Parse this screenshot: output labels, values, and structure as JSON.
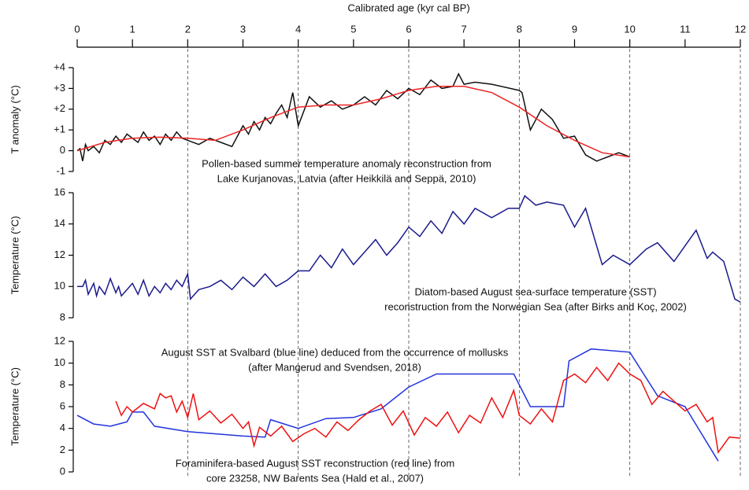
{
  "chart_data": [
    {
      "type": "line",
      "xlabel": "Calibrated age (kyr cal BP)",
      "xlim": [
        0,
        12
      ],
      "xticks": [
        0,
        1,
        2,
        3,
        4,
        5,
        6,
        7,
        8,
        9,
        10,
        11,
        12
      ],
      "vlines": [
        2,
        4,
        6,
        8,
        10,
        12
      ],
      "ylabel": "T anomaly (°C)",
      "ylim": [
        -1,
        4
      ],
      "yticks": [
        {
          "value": 4,
          "label": "+4"
        },
        {
          "value": 3,
          "label": "+3"
        },
        {
          "value": 2,
          "label": "+2"
        },
        {
          "value": 1,
          "label": "+1"
        },
        0,
        -1
      ],
      "annotations": [
        [
          "Pollen-based summer temperature anomaly reconstruction from",
          "Lake Kurjanovas, Latvia (after Heikkilä and Seppä, 2010)"
        ]
      ],
      "series": [
        {
          "color": "#111111",
          "x": [
            0,
            0.05,
            0.1,
            0.15,
            0.2,
            0.3,
            0.4,
            0.5,
            0.6,
            0.7,
            0.8,
            0.9,
            1.0,
            1.1,
            1.2,
            1.3,
            1.4,
            1.5,
            1.6,
            1.7,
            1.8,
            1.9,
            2.0,
            2.2,
            2.4,
            2.6,
            2.8,
            3.0,
            3.1,
            3.2,
            3.3,
            3.4,
            3.5,
            3.6,
            3.7,
            3.8,
            3.9,
            4.0,
            4.2,
            4.4,
            4.6,
            4.8,
            5.0,
            5.2,
            5.4,
            5.6,
            5.8,
            6.0,
            6.2,
            6.4,
            6.6,
            6.8,
            6.9,
            7.0,
            7.2,
            7.5,
            8.0,
            8.05,
            8.2,
            8.4,
            8.6,
            8.8,
            9.0,
            9.2,
            9.4,
            9.6,
            9.8,
            10.0
          ],
          "values": [
            0,
            0.1,
            -0.5,
            0.3,
            0,
            0.2,
            -0.1,
            0.5,
            0.3,
            0.7,
            0.4,
            0.8,
            0.6,
            0.4,
            0.9,
            0.5,
            0.7,
            0.3,
            0.8,
            0.5,
            0.9,
            0.6,
            0.5,
            0.3,
            0.6,
            0.4,
            0.2,
            1.2,
            0.8,
            1.4,
            1.0,
            1.6,
            1.3,
            1.8,
            2.2,
            1.6,
            2.8,
            1.2,
            2.6,
            2.1,
            2.4,
            2.0,
            2.2,
            2.6,
            2.2,
            2.9,
            2.5,
            3.0,
            2.7,
            3.4,
            3.0,
            3.1,
            3.7,
            3.2,
            3.3,
            3.2,
            2.9,
            2.8,
            1.0,
            2.0,
            1.5,
            0.6,
            0.7,
            -0.2,
            -0.5,
            -0.3,
            -0.1,
            -0.3
          ]
        },
        {
          "color": "#ee2222",
          "x": [
            0,
            0.5,
            1,
            1.5,
            2,
            2.5,
            3,
            3.5,
            4,
            4.5,
            5,
            5.5,
            6,
            6.5,
            7,
            7.5,
            8,
            8.5,
            9,
            9.5,
            10
          ],
          "values": [
            0,
            0.4,
            0.6,
            0.65,
            0.6,
            0.5,
            1.0,
            1.6,
            2.1,
            2.2,
            2.2,
            2.5,
            2.9,
            3.1,
            3.1,
            2.8,
            2.1,
            1.2,
            0.5,
            -0.1,
            -0.3
          ]
        }
      ]
    },
    {
      "type": "line",
      "xlim": [
        0,
        12
      ],
      "ylabel": "Temperature (°C)",
      "ylim": [
        8,
        16
      ],
      "yticks": [
        8,
        10,
        12,
        14,
        16
      ],
      "annotations": [
        [
          "Diatom-based August sea-surface temperature (SST)",
          "reconstruction from the Norwegian Sea (after Birks and Koç, 2002)"
        ]
      ],
      "series": [
        {
          "color": "#1a1a8c",
          "x": [
            0,
            0.1,
            0.15,
            0.2,
            0.3,
            0.35,
            0.4,
            0.5,
            0.6,
            0.7,
            0.75,
            0.8,
            0.9,
            1.0,
            1.1,
            1.2,
            1.3,
            1.4,
            1.5,
            1.6,
            1.7,
            1.8,
            1.9,
            2.0,
            2.05,
            2.2,
            2.4,
            2.6,
            2.8,
            3.0,
            3.2,
            3.4,
            3.6,
            3.8,
            4.0,
            4.2,
            4.4,
            4.6,
            4.8,
            5.0,
            5.2,
            5.4,
            5.6,
            5.8,
            6.0,
            6.2,
            6.4,
            6.6,
            6.8,
            7.0,
            7.2,
            7.5,
            7.8,
            8.0,
            8.1,
            8.3,
            8.5,
            8.8,
            9.0,
            9.2,
            9.5,
            9.7,
            10.0,
            10.3,
            10.5,
            10.8,
            11.0,
            11.2,
            11.4,
            11.5,
            11.7,
            11.9,
            12.0
          ],
          "values": [
            10,
            10,
            10.4,
            9.5,
            10.2,
            9.4,
            10,
            9.5,
            10.5,
            9.6,
            10,
            9.4,
            9.8,
            10.2,
            9.5,
            10.4,
            9.4,
            10,
            9.6,
            10.2,
            9.8,
            10.4,
            10,
            10.8,
            9.2,
            9.8,
            10,
            10.4,
            9.8,
            10.6,
            10,
            10.8,
            10,
            10.4,
            11,
            11,
            12,
            11.2,
            12.4,
            11.4,
            12.2,
            13,
            12,
            12.8,
            13.8,
            13.2,
            14.2,
            13.4,
            14.8,
            14,
            15,
            14.4,
            15,
            15,
            15.8,
            15.2,
            15.4,
            15.2,
            13.8,
            15,
            11.4,
            12,
            11.4,
            12.4,
            12.8,
            11.6,
            12.6,
            13.6,
            11.8,
            12.2,
            11.6,
            9.2,
            9
          ]
        }
      ]
    },
    {
      "type": "line",
      "xlim": [
        0,
        12
      ],
      "ylabel": "Temperature (°C)",
      "ylim": [
        0,
        12
      ],
      "yticks": [
        0,
        2,
        4,
        6,
        8,
        10,
        12
      ],
      "annotations": [
        [
          "August SST at Svalbard (blue line) deduced from the occurrence of mollusks",
          "(after Mangerud and Svendsen, 2018)"
        ],
        [
          "Foraminifera-based August SST reconstruction (red line) from",
          "core 23258, NW Barents Sea (Hald et al., 2007)"
        ]
      ],
      "series": [
        {
          "color": "#2233dd",
          "x": [
            0,
            0.3,
            0.6,
            0.9,
            1.0,
            1.2,
            1.4,
            2.0,
            3.0,
            3.4,
            3.5,
            4.0,
            4.5,
            5.0,
            5.5,
            6.0,
            6.5,
            7.9,
            8.2,
            8.8,
            8.9,
            9.3,
            10.0,
            10.5,
            11.0,
            11.6
          ],
          "values": [
            5.2,
            4.4,
            4.2,
            4.6,
            5.5,
            5.5,
            4.2,
            3.7,
            3.3,
            3.2,
            4.8,
            4.0,
            4.9,
            5.0,
            5.8,
            7.8,
            9.0,
            9.0,
            6.0,
            6.0,
            10.2,
            11.3,
            11.0,
            7.0,
            6.0,
            1.0
          ]
        },
        {
          "color": "#ee1111",
          "x": [
            0.7,
            0.8,
            0.9,
            1.0,
            1.2,
            1.4,
            1.5,
            1.6,
            1.7,
            1.8,
            1.9,
            2.0,
            2.1,
            2.2,
            2.4,
            2.6,
            2.8,
            3.0,
            3.1,
            3.2,
            3.3,
            3.5,
            3.7,
            3.9,
            4.1,
            4.3,
            4.5,
            4.7,
            4.9,
            5.1,
            5.3,
            5.5,
            5.7,
            5.9,
            6.1,
            6.3,
            6.5,
            6.7,
            6.9,
            7.1,
            7.3,
            7.5,
            7.7,
            7.9,
            8.0,
            8.2,
            8.4,
            8.6,
            8.8,
            9.0,
            9.2,
            9.4,
            9.6,
            9.8,
            10.0,
            10.2,
            10.4,
            10.6,
            10.8,
            11.0,
            11.2,
            11.4,
            11.5,
            11.6,
            11.8,
            12.0
          ],
          "values": [
            6.5,
            5.2,
            6.0,
            5.5,
            6.3,
            5.8,
            7.2,
            6.8,
            7.0,
            5.5,
            6.5,
            5.0,
            7.2,
            4.8,
            5.6,
            4.5,
            5.3,
            4.0,
            4.6,
            2.4,
            4.1,
            3.3,
            4.2,
            2.8,
            3.5,
            4.0,
            3.2,
            4.6,
            3.8,
            4.8,
            5.6,
            6.2,
            4.3,
            5.6,
            3.4,
            5.0,
            4.2,
            5.5,
            3.6,
            5.2,
            4.5,
            6.8,
            5.0,
            7.5,
            5.2,
            4.4,
            5.8,
            4.6,
            8.4,
            9.0,
            8.2,
            9.6,
            8.4,
            10.0,
            9.0,
            8.4,
            6.2,
            7.4,
            6.5,
            5.6,
            6.2,
            4.6,
            5.0,
            1.8,
            3.2,
            3.1
          ]
        }
      ]
    }
  ]
}
